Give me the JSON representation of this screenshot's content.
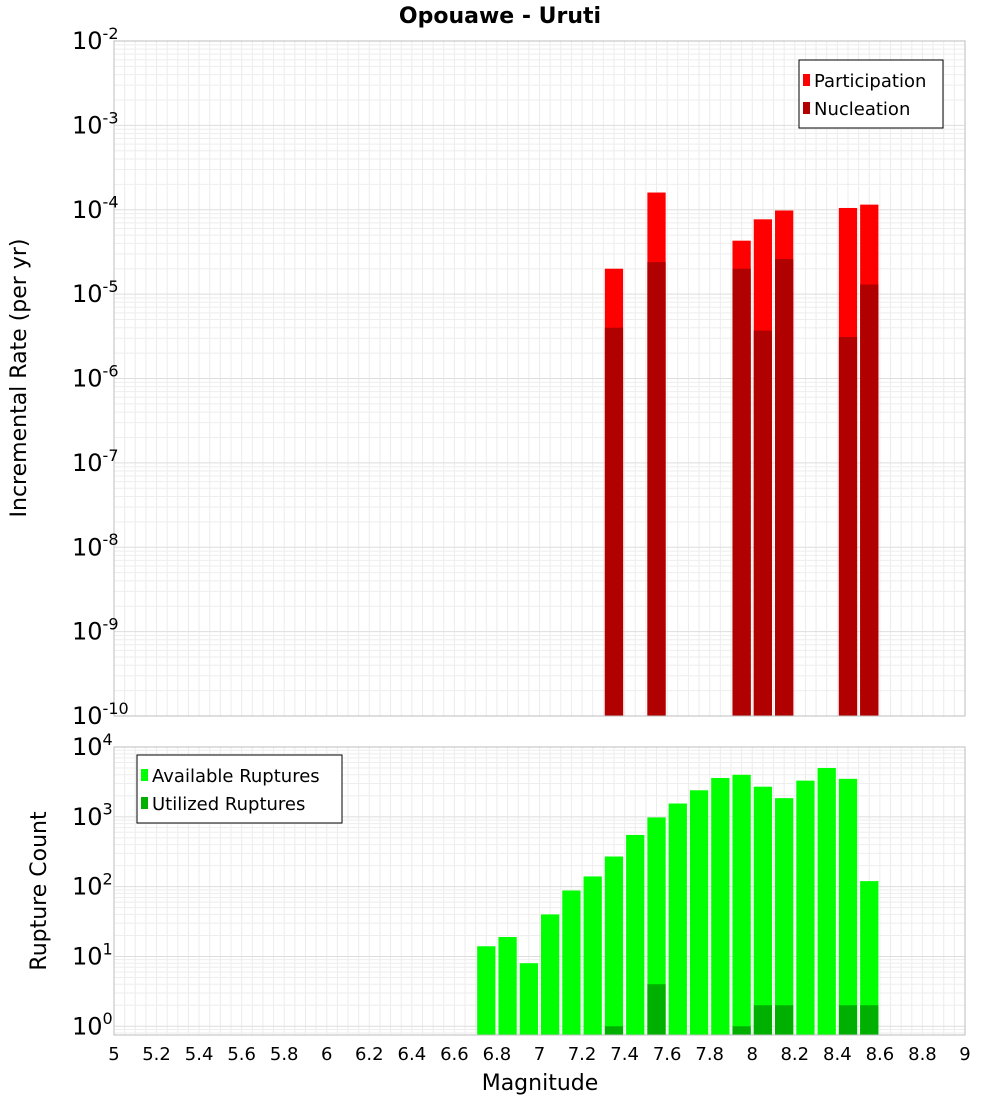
{
  "chart_data": [
    {
      "type": "bar",
      "title": "Opouawe - Uruti",
      "ylabel": "Incremental Rate (per yr)",
      "xlabel": "",
      "xlim": [
        5,
        9
      ],
      "ylim": [
        1e-10,
        0.01
      ],
      "yscale": "log",
      "grid": true,
      "legend_position": "top-right",
      "y_ticks": [
        {
          "base": "10",
          "exp": "-10",
          "value": 1e-10
        },
        {
          "base": "10",
          "exp": "-9",
          "value": 1e-09
        },
        {
          "base": "10",
          "exp": "-8",
          "value": 1e-08
        },
        {
          "base": "10",
          "exp": "-7",
          "value": 1e-07
        },
        {
          "base": "10",
          "exp": "-6",
          "value": 1e-06
        },
        {
          "base": "10",
          "exp": "-5",
          "value": 1e-05
        },
        {
          "base": "10",
          "exp": "-4",
          "value": 0.0001
        },
        {
          "base": "10",
          "exp": "-3",
          "value": 0.001
        },
        {
          "base": "10",
          "exp": "-2",
          "value": 0.01
        }
      ],
      "bin_width": 0.1,
      "x": [
        7.35,
        7.55,
        7.95,
        8.05,
        8.15,
        8.45,
        8.55
      ],
      "series": [
        {
          "name": "Participation",
          "color": "#ff0000",
          "values": [
            2e-05,
            0.00016,
            4.3e-05,
            7.7e-05,
            9.8e-05,
            0.000105,
            0.000115
          ]
        },
        {
          "name": "Nucleation",
          "color": "#b00000",
          "values": [
            4e-06,
            2.4e-05,
            2e-05,
            3.7e-06,
            2.6e-05,
            3.1e-06,
            1.3e-05
          ]
        }
      ]
    },
    {
      "type": "bar",
      "ylabel": "Rupture Count",
      "xlabel": "Magnitude",
      "xlim": [
        5,
        9
      ],
      "ylim": [
        0.75,
        10000
      ],
      "yscale": "log",
      "grid": true,
      "legend_position": "top-left",
      "y_ticks": [
        {
          "base": "10",
          "exp": "0",
          "value": 1
        },
        {
          "base": "10",
          "exp": "1",
          "value": 10
        },
        {
          "base": "10",
          "exp": "2",
          "value": 100
        },
        {
          "base": "10",
          "exp": "3",
          "value": 1000
        },
        {
          "base": "10",
          "exp": "4",
          "value": 10000
        }
      ],
      "x_tick_labels": [
        "5",
        "5.2",
        "5.4",
        "5.6",
        "5.8",
        "6",
        "6.2",
        "6.4",
        "6.6",
        "6.8",
        "7",
        "7.2",
        "7.4",
        "7.6",
        "7.8",
        "8",
        "8.2",
        "8.4",
        "8.6",
        "8.8",
        "9"
      ],
      "bin_width": 0.1,
      "x": [
        6.75,
        6.85,
        6.95,
        7.05,
        7.15,
        7.25,
        7.35,
        7.45,
        7.55,
        7.65,
        7.75,
        7.85,
        7.95,
        8.05,
        8.15,
        8.25,
        8.35,
        8.45,
        8.55
      ],
      "series": [
        {
          "name": "Available Ruptures",
          "color": "#00ff00",
          "values": [
            14,
            19,
            8,
            40,
            88,
            140,
            270,
            550,
            980,
            1550,
            2400,
            3600,
            4000,
            2700,
            1850,
            3300,
            5000,
            3500,
            120
          ]
        },
        {
          "name": "Utilized Ruptures",
          "color": "#00b000",
          "values": [
            0,
            0,
            0,
            0,
            0,
            0,
            1,
            0,
            4,
            0,
            0,
            0,
            1,
            2,
            2,
            0,
            0,
            2,
            2
          ]
        }
      ]
    }
  ]
}
